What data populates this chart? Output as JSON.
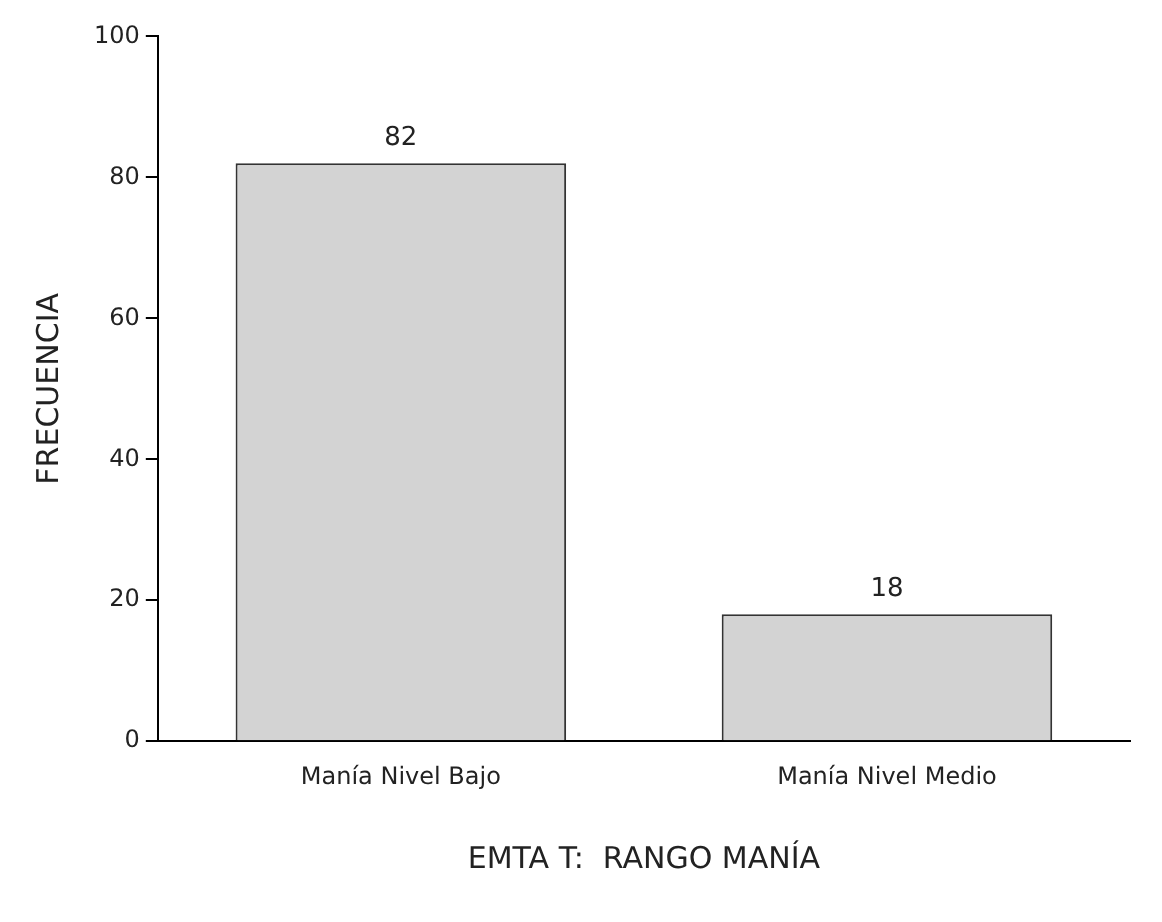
{
  "chart_data": {
    "type": "bar",
    "xlabel": "EMTA T:  RANGO MANÍA",
    "ylabel": "FRECUENCIA",
    "categories": [
      "Manía Nivel Bajo",
      "Manía Nivel Medio"
    ],
    "values": [
      82,
      18
    ],
    "color": "#d3d3d3",
    "ylim": [
      0,
      100
    ],
    "yticks": [
      0,
      20,
      40,
      60,
      80,
      100
    ],
    "grid": false,
    "legend": false,
    "data_labels": true
  }
}
